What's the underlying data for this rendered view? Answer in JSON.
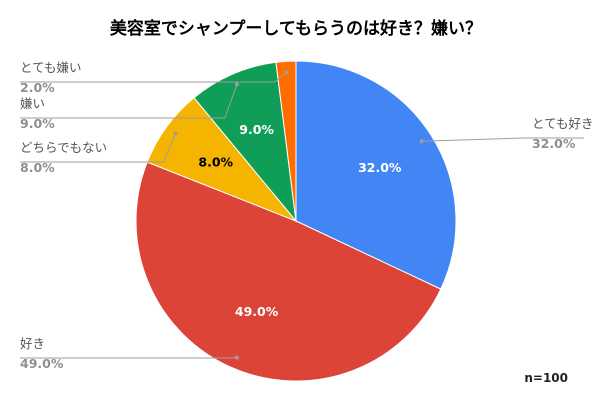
{
  "chart_data": {
    "type": "pie",
    "title": "美容室でシャンプーしてもらうのは好き？嫌い？",
    "note": "n=100",
    "slices": [
      {
        "label": "とても好き",
        "value": 32.0,
        "display": "32.0%",
        "color": "#4285f4",
        "inner_text_color": "#ffffff"
      },
      {
        "label": "好き",
        "value": 49.0,
        "display": "49.0%",
        "color": "#db4437",
        "inner_text_color": "#ffffff"
      },
      {
        "label": "どちらでもない",
        "value": 8.0,
        "display": "8.0%",
        "color": "#f4b400",
        "inner_text_color": "#000000"
      },
      {
        "label": "嫌い",
        "value": 9.0,
        "display": "9.0%",
        "color": "#0f9d58",
        "inner_text_color": "#ffffff"
      },
      {
        "label": "とても嫌い",
        "value": 2.0,
        "display": "2.0%",
        "color": "#ff6d01",
        "inner_text_color": "#ffffff"
      }
    ],
    "legend": "none",
    "label_placement": "outside-with-leader-lines"
  }
}
